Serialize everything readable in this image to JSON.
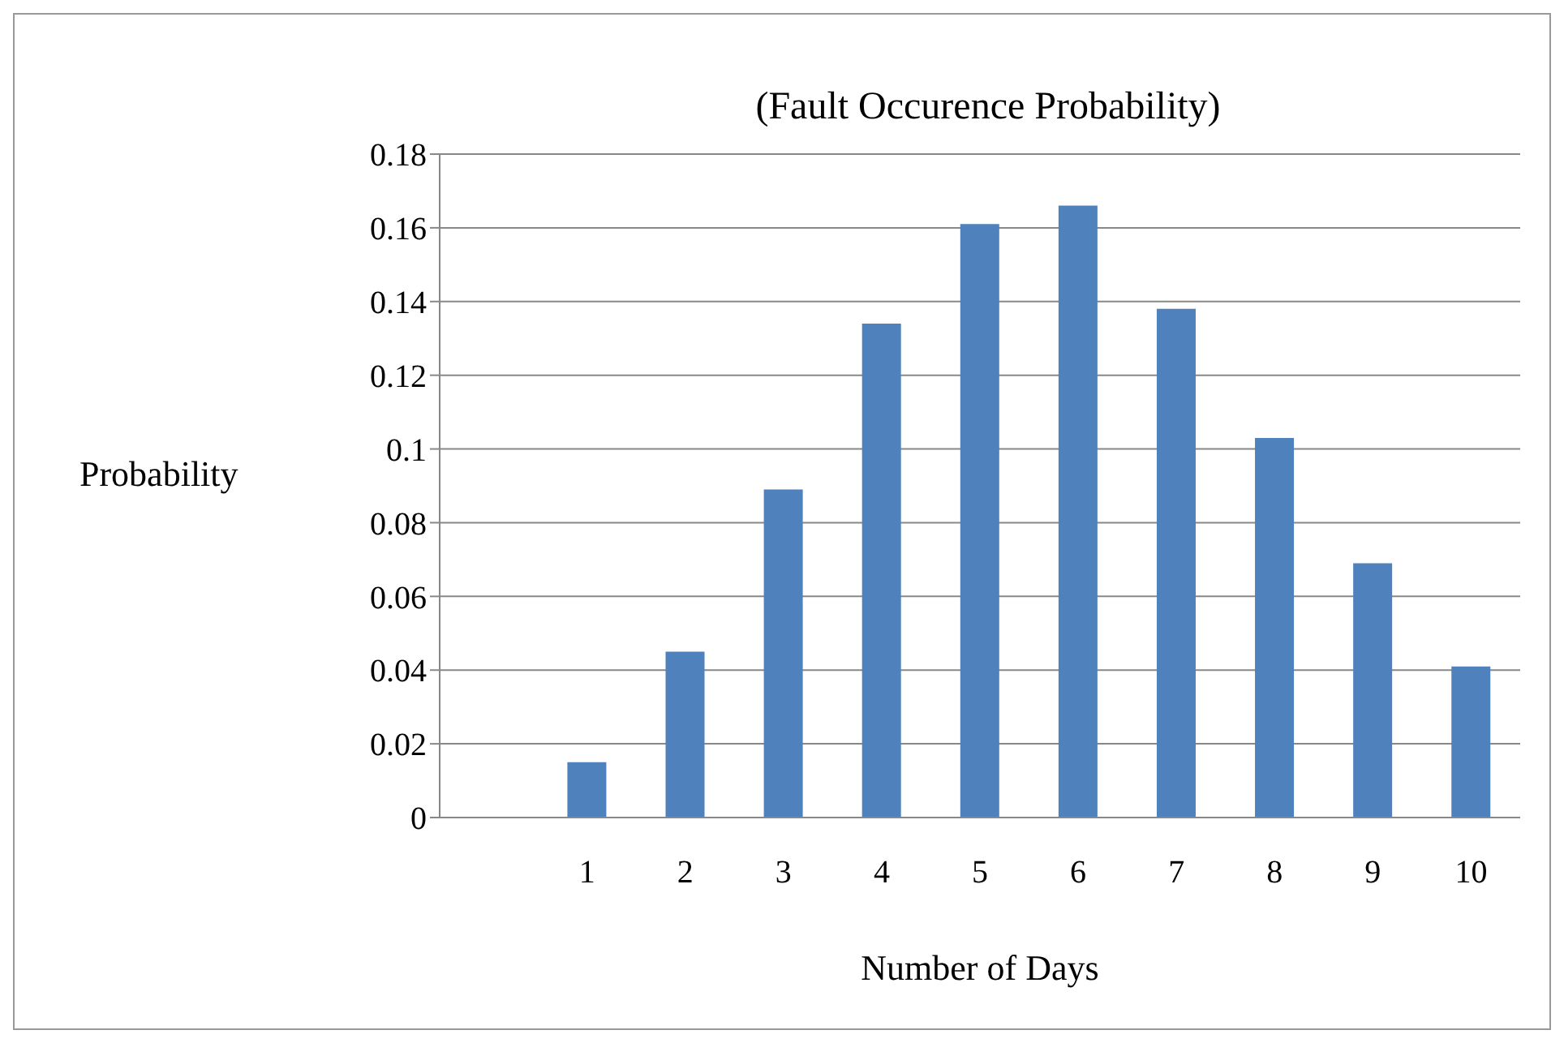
{
  "chart_data": {
    "type": "bar",
    "title": "(Fault Occurence Probability)",
    "xlabel": "Number of Days",
    "ylabel": "Probability",
    "categories": [
      null,
      "1",
      "2",
      "3",
      "4",
      "5",
      "6",
      "7",
      "8",
      "9",
      "10"
    ],
    "series": [
      {
        "color": "#4f81bd",
        "values": [
          null,
          0.015,
          0.045,
          0.089,
          0.134,
          0.161,
          0.166,
          0.138,
          0.103,
          0.069,
          0.041
        ]
      }
    ],
    "ylim": [
      0,
      0.18
    ],
    "yticks": [
      0,
      0.02,
      0.04,
      0.06,
      0.08,
      0.1,
      0.12,
      0.14,
      0.16,
      0.18
    ],
    "grid": "y",
    "legend": false
  }
}
